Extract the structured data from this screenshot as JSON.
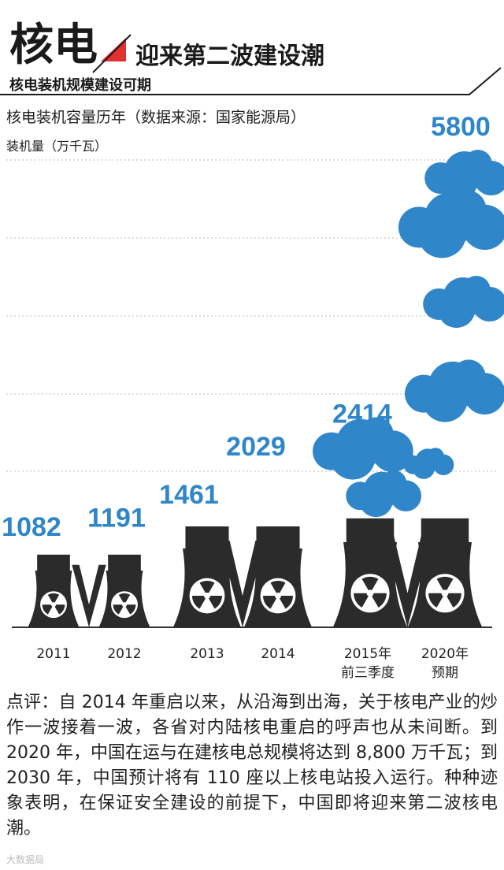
{
  "header": {
    "badge": "核电",
    "title": "迎来第二波建设潮",
    "subtitle": "核电装机规模建设可期"
  },
  "chart_data": {
    "type": "towers",
    "title": "核电装机容量历年（数据来源：国家能源局）",
    "y_label": "装机量（万千瓦）",
    "categories": [
      "2011",
      "2012",
      "2013",
      "2014",
      "2015年\n前三季度",
      "2020年\n预期"
    ],
    "values": [
      1082,
      1191,
      1461,
      2029,
      2414,
      5800
    ],
    "color": "#2f86c8"
  },
  "comment": "点评：自 2014 年重启以来，从沿海到出海，关于核电产业的炒作一波接着一波，各省对内陆核电重启的呼声也从未间断。到 2020 年，中国在运与在建核电总规模将达到 8,800 万千瓦；到 2030 年，中国预计将有 110 座以上核电站投入运行。种种迹象表明，在保证安全建设的前提下，中国即将迎来第二波核电潮。",
  "watermark": "大数据局"
}
